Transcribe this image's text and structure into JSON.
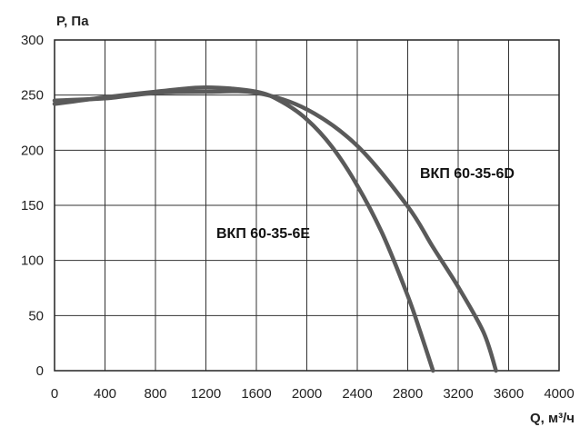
{
  "chart_data": {
    "type": "line",
    "xlabel": "Q, м³/ч",
    "ylabel": "P, Па",
    "xlim": [
      0,
      4000
    ],
    "ylim": [
      0,
      300
    ],
    "xticks": [
      0,
      400,
      800,
      1200,
      1600,
      2000,
      2400,
      2800,
      3200,
      3600,
      4000
    ],
    "yticks": [
      0,
      50,
      100,
      150,
      200,
      250,
      300
    ],
    "grid": true,
    "line_color": "#5a5a5a",
    "series": [
      {
        "name": "ВКП 60-35-6E",
        "x": [
          0,
          400,
          800,
          1200,
          1600,
          1800,
          2000,
          2200,
          2400,
          2600,
          2800,
          2900,
          3000
        ],
        "y": [
          242,
          248,
          253,
          257,
          253,
          244,
          228,
          203,
          168,
          124,
          68,
          35,
          0
        ]
      },
      {
        "name": "ВКП 60-35-6D",
        "x": [
          0,
          400,
          800,
          1200,
          1600,
          2000,
          2400,
          2800,
          3000,
          3200,
          3400,
          3500
        ],
        "y": [
          245,
          247,
          252,
          253,
          252,
          237,
          204,
          149,
          112,
          76,
          35,
          0
        ]
      }
    ]
  }
}
